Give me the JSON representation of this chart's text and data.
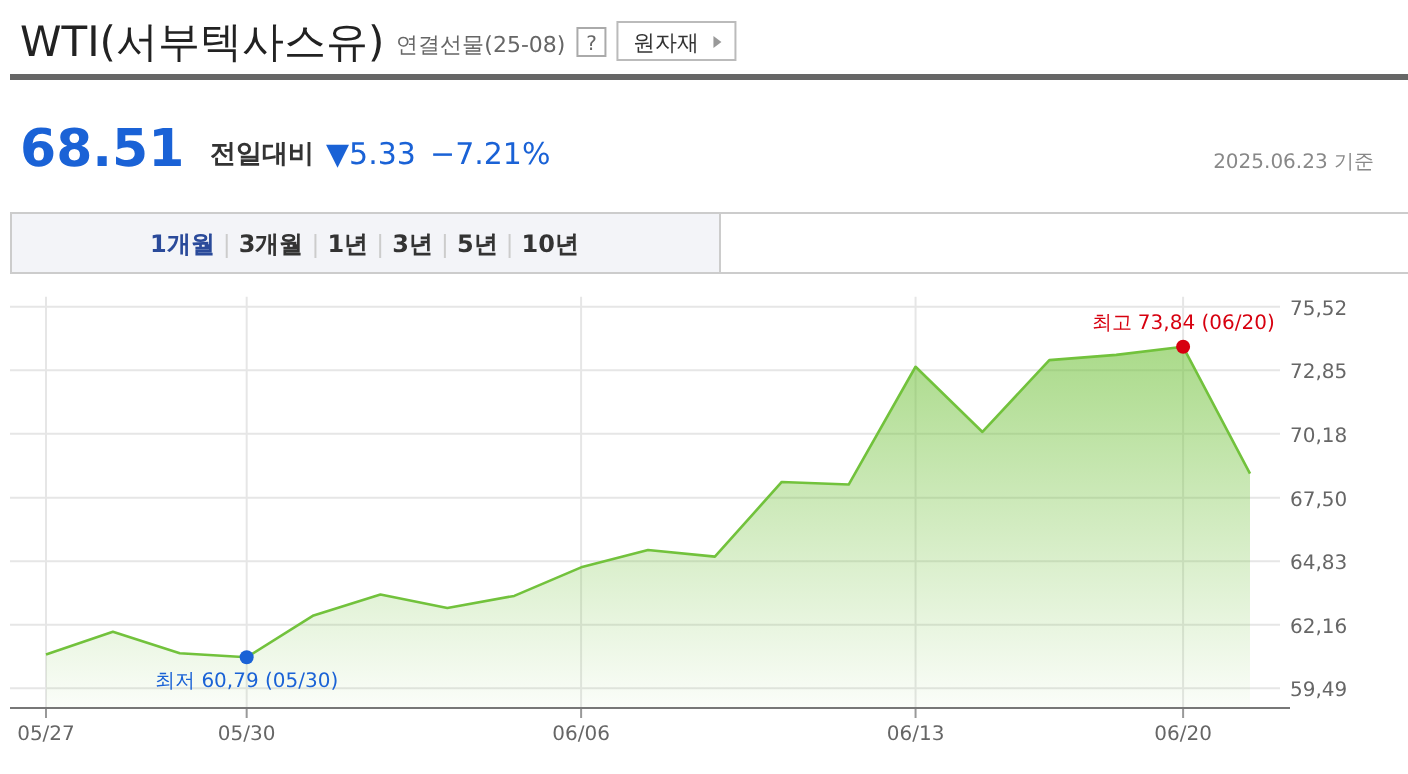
{
  "chart_data": {
    "type": "area",
    "title": "WTI(서부텍사스유)",
    "subtitle": "연결선물(25-08)",
    "categories": [
      "05/27",
      null,
      null,
      "05/30",
      null,
      null,
      null,
      null,
      "06/06",
      null,
      null,
      null,
      null,
      "06/13",
      null,
      null,
      null,
      "06/20",
      null
    ],
    "series": [
      {
        "color": "#72c23c",
        "values": [
          60.91,
          61.86,
          60.96,
          60.79,
          62.55,
          63.43,
          62.86,
          63.37,
          64.57,
          65.3,
          65.02,
          68.16,
          68.05,
          73.0,
          70.26,
          73.28,
          73.5,
          73.84,
          68.51
        ]
      }
    ],
    "ylim": [
      58.66,
      75.52
    ],
    "yticks": [
      {
        "value": 59.49,
        "label": "59,49"
      },
      {
        "value": 62.16,
        "label": "62,16"
      },
      {
        "value": 64.83,
        "label": "64,83"
      },
      {
        "value": 67.5,
        "label": "67,50"
      },
      {
        "value": 70.18,
        "label": "70,18"
      },
      {
        "value": 72.85,
        "label": "72,85"
      },
      {
        "value": 75.52,
        "label": "75,52"
      }
    ],
    "grid": true,
    "annotations": [
      {
        "text": "최저 60,79 (05/30)",
        "x": "05/30",
        "y": 60.79
      },
      {
        "text": "최고 73,84 (06/20)",
        "x": "06/20",
        "y": 73.84
      },
      "?",
      "원자재",
      "68.51",
      "전일대비",
      "▼5.33",
      "−7.21%",
      "2025.06.23 기준",
      "1개월",
      "3개월",
      "1년",
      "3년",
      "5년",
      "10년"
    ]
  }
}
